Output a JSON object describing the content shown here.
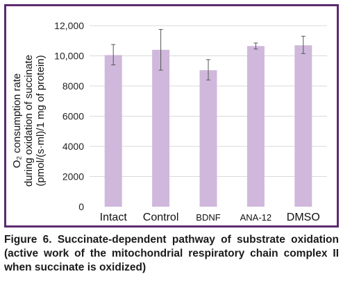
{
  "caption": "Figure 6. Succinate-dependent pathway of substrate oxidation (active work of the mitochondrial respiratory chain complex II when succinate is oxidized)",
  "colors": {
    "bar": "#d0b8dc",
    "frame": "#5b2a6e",
    "grid": "#d9d9d9",
    "error_bar": "#555555"
  },
  "chart_data": {
    "type": "bar",
    "title": "",
    "ylabel_lines": [
      "O₂ consumption rate",
      "during oxidation of succinate",
      "(pmol/(s·ml)/1 mg of protein)"
    ],
    "xlabel": "",
    "ylim": [
      0,
      12000
    ],
    "yticks": [
      0,
      2000,
      4000,
      6000,
      8000,
      10000,
      12000
    ],
    "ytick_labels": [
      "0",
      "2000",
      "4000",
      "6000",
      "8000",
      "10,000",
      "12,000"
    ],
    "grid": true,
    "categories": [
      "Intact",
      "Control",
      "BDNF",
      "ANA-12",
      "DMSO"
    ],
    "values": [
      10050,
      10400,
      9050,
      10650,
      10700
    ],
    "error_low": [
      9400,
      9050,
      8400,
      10450,
      10150
    ],
    "error_high": [
      10750,
      11750,
      9750,
      10850,
      11300
    ]
  }
}
